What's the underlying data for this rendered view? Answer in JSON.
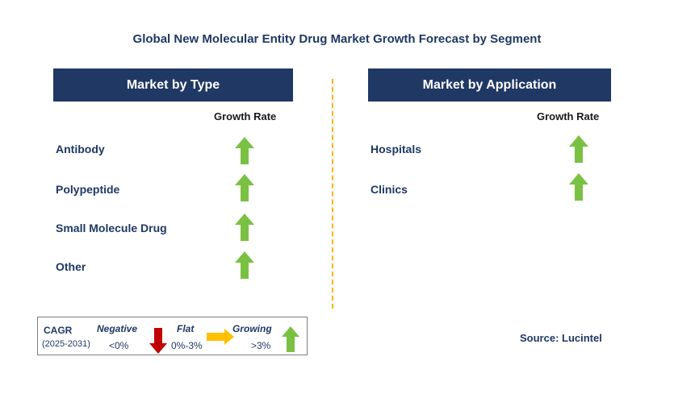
{
  "title": "Global New Molecular Entity Drug Market Growth Forecast by Segment",
  "type_panel": {
    "header": "Market by Type",
    "growth_rate_label": "Growth Rate",
    "items": [
      {
        "label": "Antibody",
        "trend": "growing"
      },
      {
        "label": "Polypeptide",
        "trend": "growing"
      },
      {
        "label": "Small Molecule Drug",
        "trend": "growing"
      },
      {
        "label": "Other",
        "trend": "growing"
      }
    ]
  },
  "application_panel": {
    "header": "Market by Application",
    "growth_rate_label": "Growth Rate",
    "items": [
      {
        "label": "Hospitals",
        "trend": "growing"
      },
      {
        "label": "Clinics",
        "trend": "growing"
      }
    ]
  },
  "legend": {
    "cagr_label": "CAGR",
    "period": "(2025-2031)",
    "negative": {
      "label": "Negative",
      "range": "<0%"
    },
    "flat": {
      "label": "Flat",
      "range": "0%-3%"
    },
    "growing": {
      "label": "Growing",
      "range": ">3%"
    }
  },
  "source": "Source: Lucintel",
  "colors": {
    "header_bg": "#1f3864",
    "up_arrow": "#7ac143",
    "down_arrow": "#c00000",
    "flat_arrow": "#ffc000",
    "divider": "#f2b705"
  }
}
